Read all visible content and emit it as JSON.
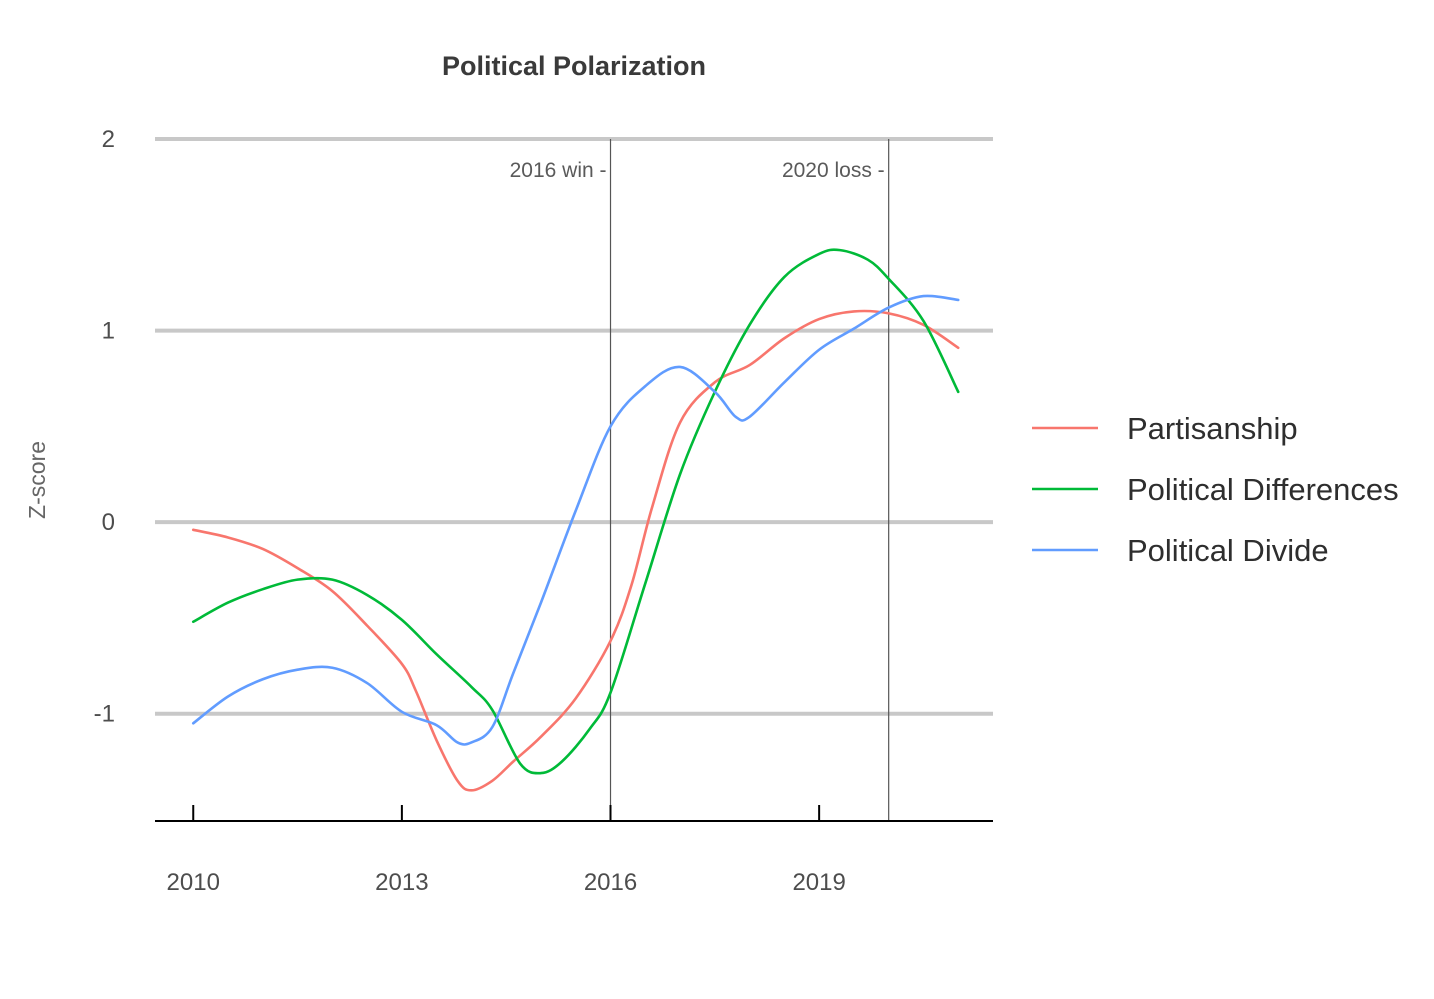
{
  "chart_data": {
    "type": "line",
    "title": "Political Polarization",
    "xlabel": "",
    "ylabel": "Z-score",
    "xlim": [
      2009.45,
      2021.5
    ],
    "ylim": [
      -1.56,
      2.0
    ],
    "x_ticks": [
      2010,
      2013,
      2016,
      2019
    ],
    "x_tick_labels": [
      "2010",
      "2013",
      "2016",
      "2019"
    ],
    "y_ticks": [
      -1,
      0,
      1,
      2
    ],
    "y_tick_labels": [
      "-1",
      "0",
      "1",
      "2"
    ],
    "grid": "horizontal",
    "legend_position": "right",
    "annotations": [
      {
        "x": 2016,
        "label": "2016 win -"
      },
      {
        "x": 2020,
        "label": "2020 loss -"
      }
    ],
    "series": [
      {
        "name": "Partisanship",
        "color": "#F8766D",
        "x": [
          2010,
          2010.5,
          2011,
          2011.5,
          2012,
          2012.5,
          2013,
          2013.2,
          2013.5,
          2013.8,
          2014,
          2014.3,
          2014.6,
          2015,
          2015.5,
          2016,
          2016.3,
          2016.6,
          2017,
          2017.5,
          2018,
          2018.5,
          2019,
          2019.5,
          2020,
          2020.5,
          2021
        ],
        "y": [
          -0.04,
          -0.08,
          -0.14,
          -0.24,
          -0.36,
          -0.54,
          -0.74,
          -0.88,
          -1.14,
          -1.35,
          -1.4,
          -1.35,
          -1.25,
          -1.12,
          -0.92,
          -0.62,
          -0.33,
          0.08,
          0.52,
          0.73,
          0.82,
          0.96,
          1.06,
          1.1,
          1.09,
          1.03,
          0.91
        ]
      },
      {
        "name": "Political Differences",
        "color": "#00BA38",
        "x": [
          2010,
          2010.5,
          2011,
          2011.5,
          2012,
          2012.5,
          2013,
          2013.5,
          2014,
          2014.3,
          2014.7,
          2015,
          2015.3,
          2015.7,
          2016,
          2016.5,
          2017,
          2017.5,
          2018,
          2018.5,
          2019,
          2019.3,
          2019.7,
          2020,
          2020.5,
          2021
        ],
        "y": [
          -0.52,
          -0.42,
          -0.35,
          -0.3,
          -0.3,
          -0.38,
          -0.51,
          -0.69,
          -0.86,
          -0.98,
          -1.26,
          -1.31,
          -1.25,
          -1.08,
          -0.89,
          -0.32,
          0.25,
          0.68,
          1.03,
          1.28,
          1.4,
          1.42,
          1.37,
          1.27,
          1.05,
          0.68
        ]
      },
      {
        "name": "Political Divide",
        "color": "#619CFF",
        "x": [
          2010,
          2010.5,
          2011,
          2011.5,
          2012,
          2012.5,
          2013,
          2013.5,
          2013.8,
          2014,
          2014.3,
          2014.6,
          2015,
          2015.5,
          2016,
          2016.5,
          2017,
          2017.5,
          2017.8,
          2018,
          2018.5,
          2019,
          2019.5,
          2020,
          2020.5,
          2021
        ],
        "y": [
          -1.05,
          -0.91,
          -0.82,
          -0.77,
          -0.76,
          -0.84,
          -0.99,
          -1.06,
          -1.15,
          -1.15,
          -1.07,
          -0.79,
          -0.42,
          0.06,
          0.5,
          0.71,
          0.81,
          0.68,
          0.55,
          0.55,
          0.73,
          0.9,
          1.01,
          1.12,
          1.18,
          1.16
        ]
      }
    ]
  }
}
